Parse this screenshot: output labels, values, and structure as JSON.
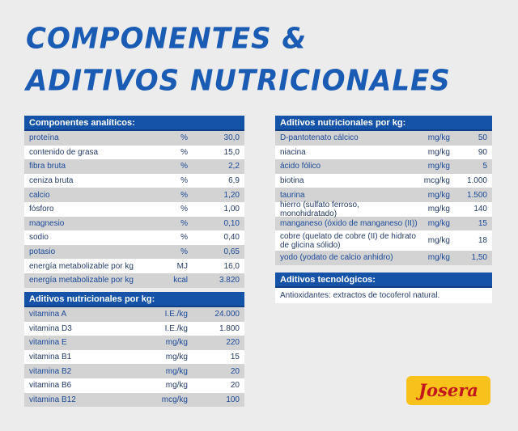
{
  "title": {
    "line1": "COMPONENTES &",
    "line2": "ADITIVOS NUTRICIONALES"
  },
  "analytic": {
    "header": "Componentes analíticos:",
    "rows": [
      [
        "proteína",
        "%",
        "30,0"
      ],
      [
        "contenido de grasa",
        "%",
        "15,0"
      ],
      [
        "fibra bruta",
        "%",
        "2,2"
      ],
      [
        "ceniza bruta",
        "%",
        "6,9"
      ],
      [
        "calcio",
        "%",
        "1,20"
      ],
      [
        "fósforo",
        "%",
        "1,00"
      ],
      [
        "magnesio",
        "%",
        "0,10"
      ],
      [
        "sodio",
        "%",
        "0,40"
      ],
      [
        "potasio",
        "%",
        "0,65"
      ],
      [
        "energía metabolizable por kg",
        "MJ",
        "16,0"
      ],
      [
        "energía metabolizable por kg",
        "kcal",
        "3.820"
      ]
    ]
  },
  "vitamins": {
    "header": "Aditivos nutricionales por kg:",
    "rows": [
      [
        "vitamina A",
        "I.E./kg",
        "24.000"
      ],
      [
        "vitamina D3",
        "I.E./kg",
        "1.800"
      ],
      [
        "vitamina E",
        "mg/kg",
        "220"
      ],
      [
        "vitamina B1",
        "mg/kg",
        "15"
      ],
      [
        "vitamina B2",
        "mg/kg",
        "20"
      ],
      [
        "vitamina B6",
        "mg/kg",
        "20"
      ],
      [
        "vitamina B12",
        "mcg/kg",
        "100"
      ]
    ]
  },
  "additives": {
    "header": "Aditivos nutricionales por kg:",
    "rows": [
      [
        "D-pantotenato cálcico",
        "mg/kg",
        "50"
      ],
      [
        "niacina",
        "mg/kg",
        "90"
      ],
      [
        "ácido fólico",
        "mg/kg",
        "5"
      ],
      [
        "biotina",
        "mcg/kg",
        "1.000"
      ],
      [
        "taurina",
        "mg/kg",
        "1.500"
      ],
      [
        "hierro (sulfato ferroso, monohidratado)",
        "mg/kg",
        "140"
      ],
      [
        "manganeso (óxido de manganeso (II))",
        "mg/kg",
        "15"
      ],
      [
        "cobre (quelato de cobre (II) de hidrato de glicina sólido)",
        "mg/kg",
        "18"
      ],
      [
        "yodo (yodato de calcio anhidro)",
        "mg/kg",
        "1,50"
      ]
    ]
  },
  "tech": {
    "header": "Aditivos tecnológicos:",
    "text": "Antioxidantes: extractos de tocoferol natural."
  },
  "logo": "Josera"
}
